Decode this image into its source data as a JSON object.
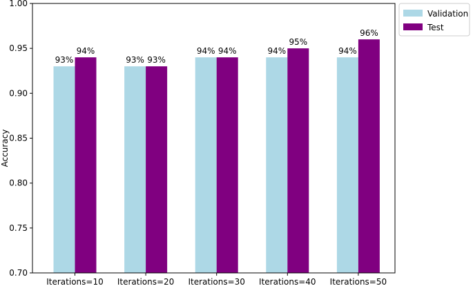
{
  "chart_data": {
    "type": "bar",
    "title": "",
    "xlabel": "",
    "ylabel": "Accuracy",
    "categories": [
      "Iterations=10",
      "Iterations=20",
      "Iterations=30",
      "Iterations=40",
      "Iterations=50"
    ],
    "series": [
      {
        "name": "Validation",
        "color": "#add8e6",
        "values": [
          0.93,
          0.93,
          0.94,
          0.94,
          0.94
        ],
        "labels": [
          "93%",
          "93%",
          "94%",
          "94%",
          "94%"
        ]
      },
      {
        "name": "Test",
        "color": "#800080",
        "values": [
          0.94,
          0.93,
          0.94,
          0.95,
          0.96
        ],
        "labels": [
          "94%",
          "93%",
          "94%",
          "95%",
          "96%"
        ]
      }
    ],
    "ylim": [
      0.7,
      1.0
    ],
    "yticks": [
      "0.70",
      "0.75",
      "0.80",
      "0.85",
      "0.90",
      "0.95",
      "1.00"
    ],
    "grid": false,
    "legend_position": "outside-top-right"
  }
}
